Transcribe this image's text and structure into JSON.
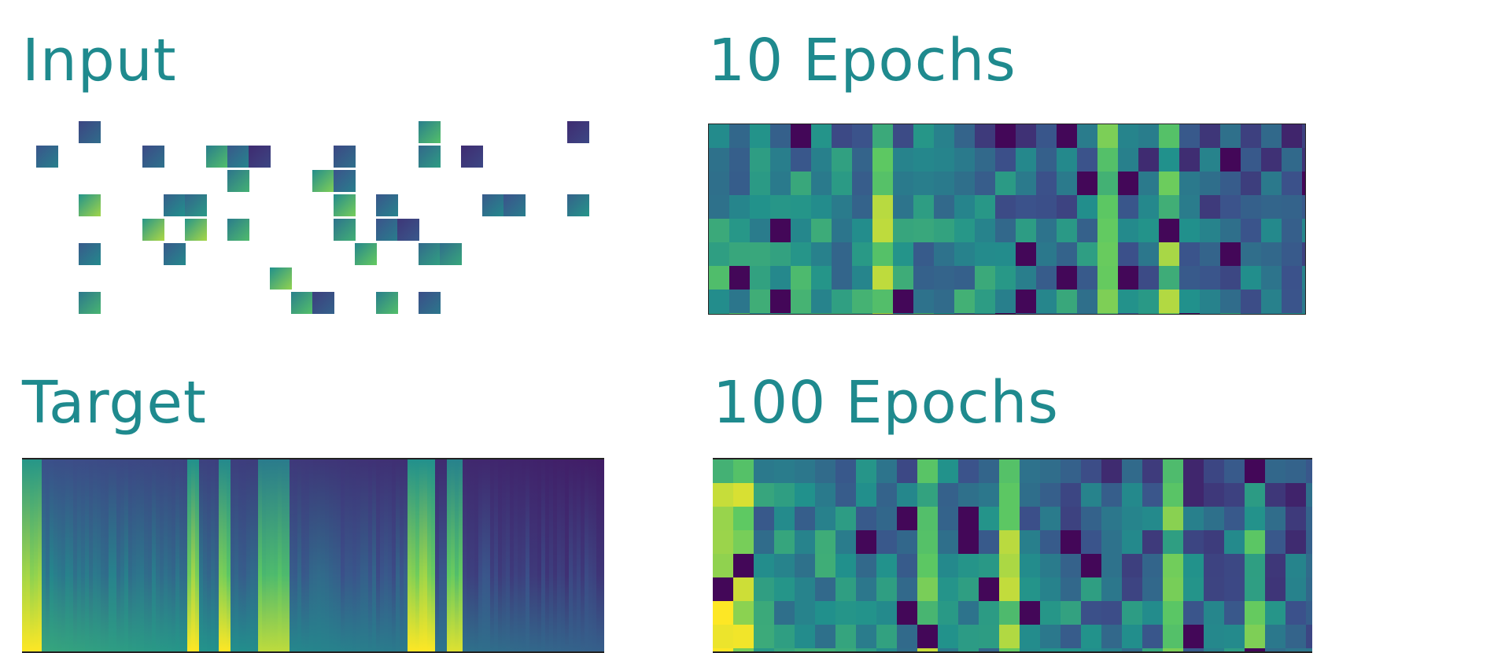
{
  "titles": {
    "input": "Input",
    "epochs_10": "10 Epochs",
    "target": "Target",
    "epochs_100": "100 Epochs"
  },
  "colors": {
    "title": "#1f8a8e",
    "colormap": [
      "#440154",
      "#3b528b",
      "#21918c",
      "#5ec962",
      "#fde725"
    ]
  }
}
